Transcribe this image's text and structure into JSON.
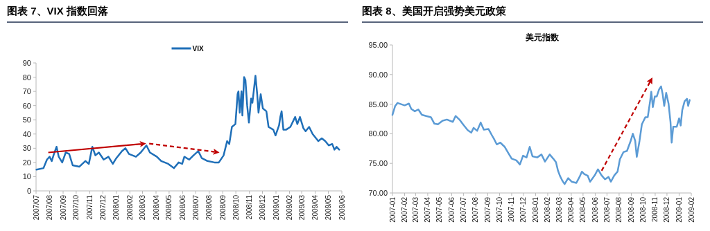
{
  "chart_data": [
    {
      "type": "line",
      "title": "图表 7、VIX 指数回落",
      "legend": "top",
      "xlim": [
        "2007-07-01",
        "2009-06-01"
      ],
      "xticks": [
        {
          "value": "2007-07-01",
          "label": "2007/07"
        },
        {
          "value": "2007-08-01",
          "label": "2007/08"
        },
        {
          "value": "2007-09-01",
          "label": "2007/09"
        },
        {
          "value": "2007-10-01",
          "label": "2007/10"
        },
        {
          "value": "2007-11-01",
          "label": "2007/11"
        },
        {
          "value": "2007-12-01",
          "label": "2007/12"
        },
        {
          "value": "2008-01-01",
          "label": "2008/01"
        },
        {
          "value": "2008-02-01",
          "label": "2008/02"
        },
        {
          "value": "2008-03-01",
          "label": "2008/03"
        },
        {
          "value": "2008-04-01",
          "label": "2008/04"
        },
        {
          "value": "2008-05-01",
          "label": "2008/05"
        },
        {
          "value": "2008-06-01",
          "label": "2008/06"
        },
        {
          "value": "2008-07-01",
          "label": "2008/07"
        },
        {
          "value": "2008-08-01",
          "label": "2008/08"
        },
        {
          "value": "2008-09-01",
          "label": "2008/09"
        },
        {
          "value": "2008-10-01",
          "label": "2008/10"
        },
        {
          "value": "2008-11-01",
          "label": "2008/11"
        },
        {
          "value": "2008-12-01",
          "label": "2008/12"
        },
        {
          "value": "2009-01-01",
          "label": "2009/01"
        },
        {
          "value": "2009-02-01",
          "label": "2009/02"
        },
        {
          "value": "2009-03-01",
          "label": "2009/03"
        },
        {
          "value": "2009-04-01",
          "label": "2009/04"
        },
        {
          "value": "2009-05-01",
          "label": "2009/05"
        },
        {
          "value": "2009-06-01",
          "label": "2009/06"
        }
      ],
      "ylim": [
        0,
        90
      ],
      "yticks": [
        0,
        10,
        20,
        30,
        40,
        50,
        60,
        70,
        80,
        90
      ],
      "x": [
        "2007-07-02",
        "2007-07-18",
        "2007-07-26",
        "2007-08-01",
        "2007-08-06",
        "2007-08-11",
        "2007-08-17",
        "2007-08-22",
        "2007-08-30",
        "2007-09-07",
        "2007-09-15",
        "2007-09-23",
        "2007-10-08",
        "2007-10-22",
        "2007-10-30",
        "2007-11-07",
        "2007-11-14",
        "2007-11-22",
        "2007-12-03",
        "2007-12-14",
        "2007-12-24",
        "2008-01-01",
        "2008-01-14",
        "2008-01-22",
        "2008-01-30",
        "2008-02-15",
        "2008-02-26",
        "2008-03-10",
        "2008-03-18",
        "2008-04-03",
        "2008-04-13",
        "2008-04-29",
        "2008-05-12",
        "2008-05-23",
        "2008-05-31",
        "2008-06-05",
        "2008-06-16",
        "2008-06-26",
        "2008-07-07",
        "2008-07-15",
        "2008-07-28",
        "2008-08-13",
        "2008-08-23",
        "2008-09-03",
        "2008-09-11",
        "2008-09-16",
        "2008-09-22",
        "2008-09-30",
        "2008-10-05",
        "2008-10-07",
        "2008-10-10",
        "2008-10-14",
        "2008-10-16",
        "2008-10-20",
        "2008-10-23",
        "2008-10-27",
        "2008-10-31",
        "2008-11-05",
        "2008-11-08",
        "2008-11-11",
        "2008-11-15",
        "2008-11-19",
        "2008-11-22",
        "2008-11-27",
        "2008-12-02",
        "2008-12-10",
        "2008-12-15",
        "2008-12-26",
        "2008-12-31",
        "2009-01-08",
        "2009-01-11",
        "2009-01-14",
        "2009-01-18",
        "2009-01-24",
        "2009-02-03",
        "2009-02-14",
        "2009-02-19",
        "2009-02-25",
        "2009-03-05",
        "2009-03-10",
        "2009-03-18",
        "2009-03-26",
        "2009-04-03",
        "2009-04-08",
        "2009-04-16",
        "2009-04-24",
        "2009-05-02",
        "2009-05-10",
        "2009-05-15",
        "2009-05-20",
        "2009-05-26"
      ],
      "series": [
        {
          "name": "VIX",
          "color": "#1f6fb8",
          "values": [
            15,
            16,
            22,
            24,
            21,
            26,
            31,
            24,
            20,
            27,
            26,
            18,
            17,
            21,
            19,
            31,
            25,
            27,
            22,
            24,
            19,
            23,
            28,
            30,
            26,
            24,
            27,
            32,
            27,
            24,
            21,
            19,
            16,
            20,
            19,
            24,
            22,
            25,
            28,
            23,
            21,
            20,
            20,
            25,
            35,
            33,
            45,
            47,
            68,
            70,
            55,
            70,
            53,
            80,
            78,
            60,
            48,
            65,
            62,
            70,
            81,
            68,
            55,
            68,
            58,
            56,
            45,
            43,
            39,
            46,
            52,
            56,
            43,
            43,
            45,
            52,
            47,
            52,
            44,
            42,
            45,
            40,
            37,
            35,
            37,
            35,
            32,
            33,
            29,
            31,
            29
          ]
        }
      ]
    },
    {
      "type": "line",
      "title": "图表 8、美国开启强势美元政策",
      "subtitle": "美元指数",
      "xlim": [
        "2007-01-01",
        "2009-02-01"
      ],
      "xticks": [
        {
          "value": "2007-01-01",
          "label": "2007-01"
        },
        {
          "value": "2007-02-01",
          "label": "2007-02"
        },
        {
          "value": "2007-03-01",
          "label": "2007-03"
        },
        {
          "value": "2007-04-01",
          "label": "2007-04"
        },
        {
          "value": "2007-05-01",
          "label": "2007-05"
        },
        {
          "value": "2007-06-01",
          "label": "2007-06"
        },
        {
          "value": "2007-07-01",
          "label": "2007-07"
        },
        {
          "value": "2007-08-01",
          "label": "2007-08"
        },
        {
          "value": "2007-09-01",
          "label": "2007-09"
        },
        {
          "value": "2007-10-01",
          "label": "2007-10"
        },
        {
          "value": "2007-11-01",
          "label": "2007-11"
        },
        {
          "value": "2007-12-01",
          "label": "2007-12"
        },
        {
          "value": "2008-01-01",
          "label": "2008-01"
        },
        {
          "value": "2008-02-01",
          "label": "2008-02"
        },
        {
          "value": "2008-03-01",
          "label": "2008-03"
        },
        {
          "value": "2008-04-01",
          "label": "2008-04"
        },
        {
          "value": "2008-05-01",
          "label": "2008-05"
        },
        {
          "value": "2008-06-01",
          "label": "2008-06"
        },
        {
          "value": "2008-07-01",
          "label": "2008-07"
        },
        {
          "value": "2008-08-01",
          "label": "2008-08"
        },
        {
          "value": "2008-09-01",
          "label": "2008-09"
        },
        {
          "value": "2008-10-01",
          "label": "2008-10"
        },
        {
          "value": "2008-11-01",
          "label": "2008-11"
        },
        {
          "value": "2008-12-01",
          "label": "2008-12"
        },
        {
          "value": "2009-01-01",
          "label": "2009-01"
        },
        {
          "value": "2009-02-01",
          "label": "2009-02"
        }
      ],
      "ylim": [
        70,
        95
      ],
      "yticks": [
        {
          "value": 70,
          "label": "70.00"
        },
        {
          "value": 75,
          "label": "75.00"
        },
        {
          "value": 80,
          "label": "80.00"
        },
        {
          "value": 85,
          "label": "85.00"
        },
        {
          "value": 90,
          "label": "90.00"
        },
        {
          "value": 95,
          "label": "95.00"
        }
      ],
      "x": [
        "2007-01-01",
        "2007-01-08",
        "2007-01-14",
        "2007-02-01",
        "2007-02-12",
        "2007-02-18",
        "2007-02-27",
        "2007-03-08",
        "2007-03-17",
        "2007-03-28",
        "2007-04-09",
        "2007-04-18",
        "2007-04-27",
        "2007-05-09",
        "2007-05-20",
        "2007-06-04",
        "2007-06-11",
        "2007-06-22",
        "2007-07-01",
        "2007-07-12",
        "2007-07-21",
        "2007-07-27",
        "2007-08-05",
        "2007-08-14",
        "2007-08-22",
        "2007-09-03",
        "2007-09-12",
        "2007-09-18",
        "2007-09-24",
        "2007-10-03",
        "2007-10-14",
        "2007-10-23",
        "2007-11-01",
        "2007-11-13",
        "2007-11-22",
        "2007-11-30",
        "2007-12-09",
        "2007-12-17",
        "2007-12-24",
        "2008-01-05",
        "2008-01-16",
        "2008-01-25",
        "2008-02-06",
        "2008-02-15",
        "2008-02-22",
        "2008-02-27",
        "2008-03-03",
        "2008-03-09",
        "2008-03-15",
        "2008-03-24",
        "2008-04-02",
        "2008-04-14",
        "2008-04-22",
        "2008-04-28",
        "2008-05-04",
        "2008-05-13",
        "2008-05-19",
        "2008-05-31",
        "2008-06-08",
        "2008-06-17",
        "2008-06-26",
        "2008-07-05",
        "2008-07-11",
        "2008-07-20",
        "2008-07-28",
        "2008-08-03",
        "2008-08-12",
        "2008-08-21",
        "2008-08-30",
        "2008-09-05",
        "2008-09-11",
        "2008-09-15",
        "2008-09-22",
        "2008-09-28",
        "2008-10-07",
        "2008-10-13",
        "2008-10-19",
        "2008-10-22",
        "2008-10-26",
        "2008-10-31",
        "2008-11-05",
        "2008-11-11",
        "2008-11-16",
        "2008-11-20",
        "2008-11-24",
        "2008-11-29",
        "2008-12-05",
        "2008-12-10",
        "2008-12-13",
        "2008-12-17",
        "2008-12-26",
        "2009-01-01",
        "2009-01-05",
        "2009-01-09",
        "2009-01-15",
        "2009-01-21",
        "2009-01-24",
        "2009-01-28"
      ],
      "series": [
        {
          "color": "#5b9bd5",
          "values": [
            83.2,
            84.7,
            85.2,
            84.8,
            85.1,
            84.2,
            83.8,
            84.1,
            83.2,
            83.0,
            82.8,
            81.7,
            81.6,
            82.2,
            82.4,
            82.0,
            83.0,
            82.3,
            81.5,
            80.6,
            80.2,
            81.0,
            80.5,
            81.9,
            80.7,
            80.8,
            79.7,
            79.0,
            78.2,
            78.5,
            77.8,
            76.8,
            75.8,
            75.5,
            74.8,
            76.3,
            76.0,
            77.8,
            76.2,
            76.0,
            76.5,
            75.3,
            76.5,
            75.8,
            75.2,
            73.8,
            72.9,
            72.1,
            71.5,
            72.5,
            71.9,
            71.7,
            72.7,
            73.6,
            73.2,
            72.9,
            71.9,
            73.0,
            74.0,
            73.0,
            72.3,
            72.7,
            71.9,
            73.0,
            73.6,
            75.7,
            76.9,
            77.1,
            78.7,
            80.0,
            78.8,
            76.1,
            78.8,
            81.6,
            82.8,
            82.8,
            85.5,
            87.1,
            84.5,
            86.3,
            86.3,
            87.5,
            88.0,
            86.7,
            84.7,
            86.9,
            85.1,
            82.0,
            78.5,
            81.2,
            81.2,
            82.6,
            81.4,
            84.0,
            85.5,
            85.9,
            84.7,
            85.7
          ]
        }
      ]
    }
  ]
}
